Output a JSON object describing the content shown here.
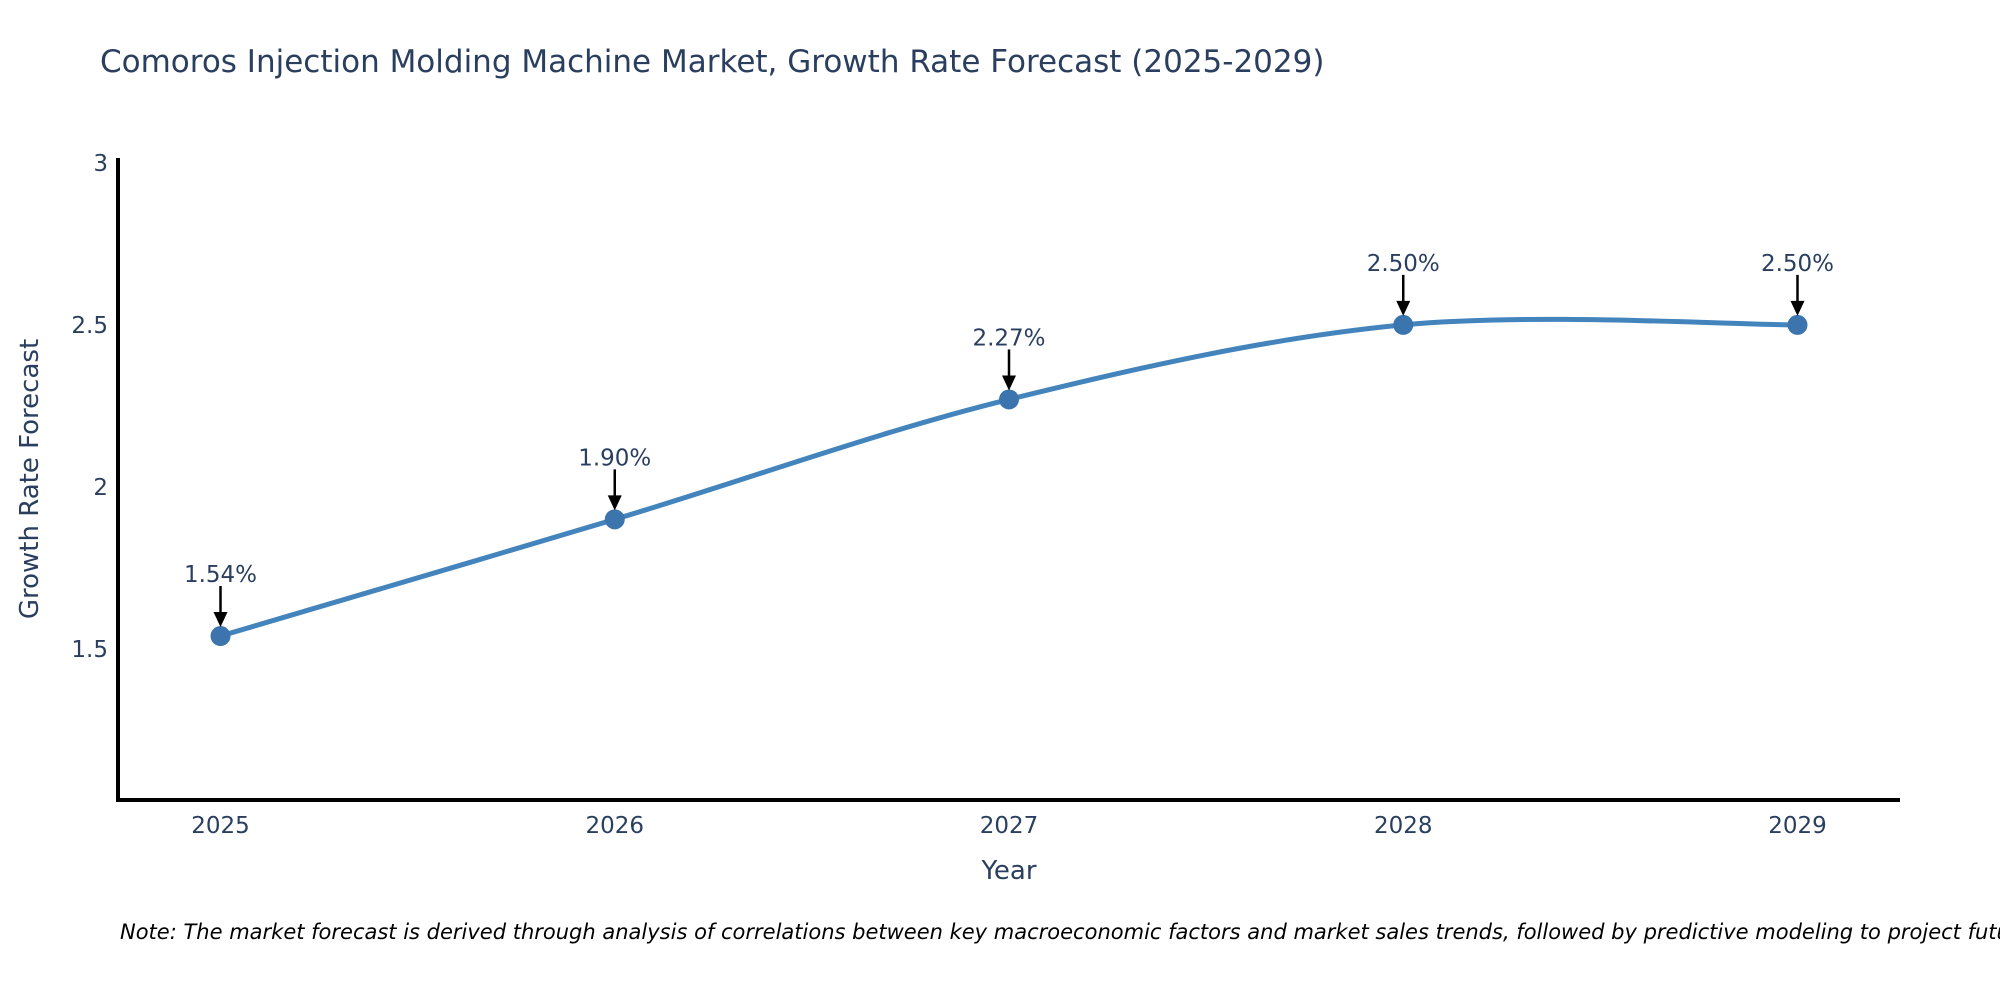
{
  "title": "Comoros Injection Molding Machine Market, Growth Rate Forecast (2025-2029)",
  "note": "Note: The market forecast is derived through analysis of correlations between key macroeconomic factors and market sales trends, followed by predictive modeling to project future sales",
  "chart_data": {
    "type": "line",
    "title": "Comoros Injection Molding Machine Market, Growth Rate Forecast (2025-2029)",
    "xlabel": "Year",
    "ylabel": "Growth Rate Forecast",
    "x": [
      2025,
      2026,
      2027,
      2028,
      2029
    ],
    "values": [
      1.54,
      1.9,
      2.27,
      2.5,
      2.5
    ],
    "point_labels": [
      "1.54%",
      "1.90%",
      "2.27%",
      "2.50%",
      "2.50%"
    ],
    "x_tick_labels": [
      "2025",
      "2026",
      "2027",
      "2028",
      "2029"
    ],
    "y_ticks": [
      1.5,
      2,
      2.5,
      3
    ],
    "y_tick_labels": [
      "1.5",
      "2",
      "2.5",
      "3"
    ],
    "xlim": [
      2024.74,
      2029.26
    ],
    "ylim": [
      1.034,
      3.015
    ],
    "line_shape": "spline",
    "grid": false,
    "legend": "none",
    "colors": {
      "line": "#4484bd",
      "marker": "#3c74ad",
      "axis": "#000000",
      "tick_text": "#2a3f5f",
      "title_text": "#2a3f5f",
      "annotation_text": "#2a3f5f",
      "arrow": "#000000",
      "note_text": "#000000",
      "background": "#ffffff"
    }
  }
}
